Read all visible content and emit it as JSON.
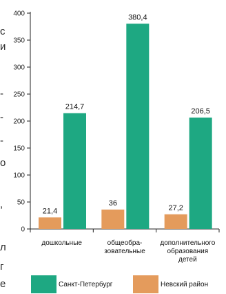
{
  "clipped_text": [
    "с",
    "и",
    "-",
    "-",
    "-",
    "о",
    ",",
    "л",
    "г",
    "е"
  ],
  "chart_data": {
    "type": "bar",
    "categories": [
      [
        "дошкольные"
      ],
      [
        "общеобра-",
        "зовательные"
      ],
      [
        "дополнительного",
        "образования",
        "детей"
      ]
    ],
    "series": [
      {
        "name": "Невский район",
        "color": "#e49b5c",
        "values": [
          21.4,
          36,
          27.2
        ],
        "labels": [
          "21,4",
          "36",
          "27,2"
        ]
      },
      {
        "name": "Санкт-Петербург",
        "color": "#1ea882",
        "values": [
          214.7,
          380.4,
          206.5
        ],
        "labels": [
          "214,7",
          "380,4",
          "206,5"
        ]
      }
    ],
    "ylim": [
      0,
      400
    ],
    "yticks": [
      "0",
      "50",
      "100",
      "150",
      "200",
      "250",
      "300",
      "350",
      "400"
    ],
    "legend": [
      {
        "name": "Санкт-Петербург",
        "color": "#1ea882"
      },
      {
        "name": "Невский район",
        "color": "#e49b5c"
      }
    ],
    "legend_position": "bottom"
  }
}
